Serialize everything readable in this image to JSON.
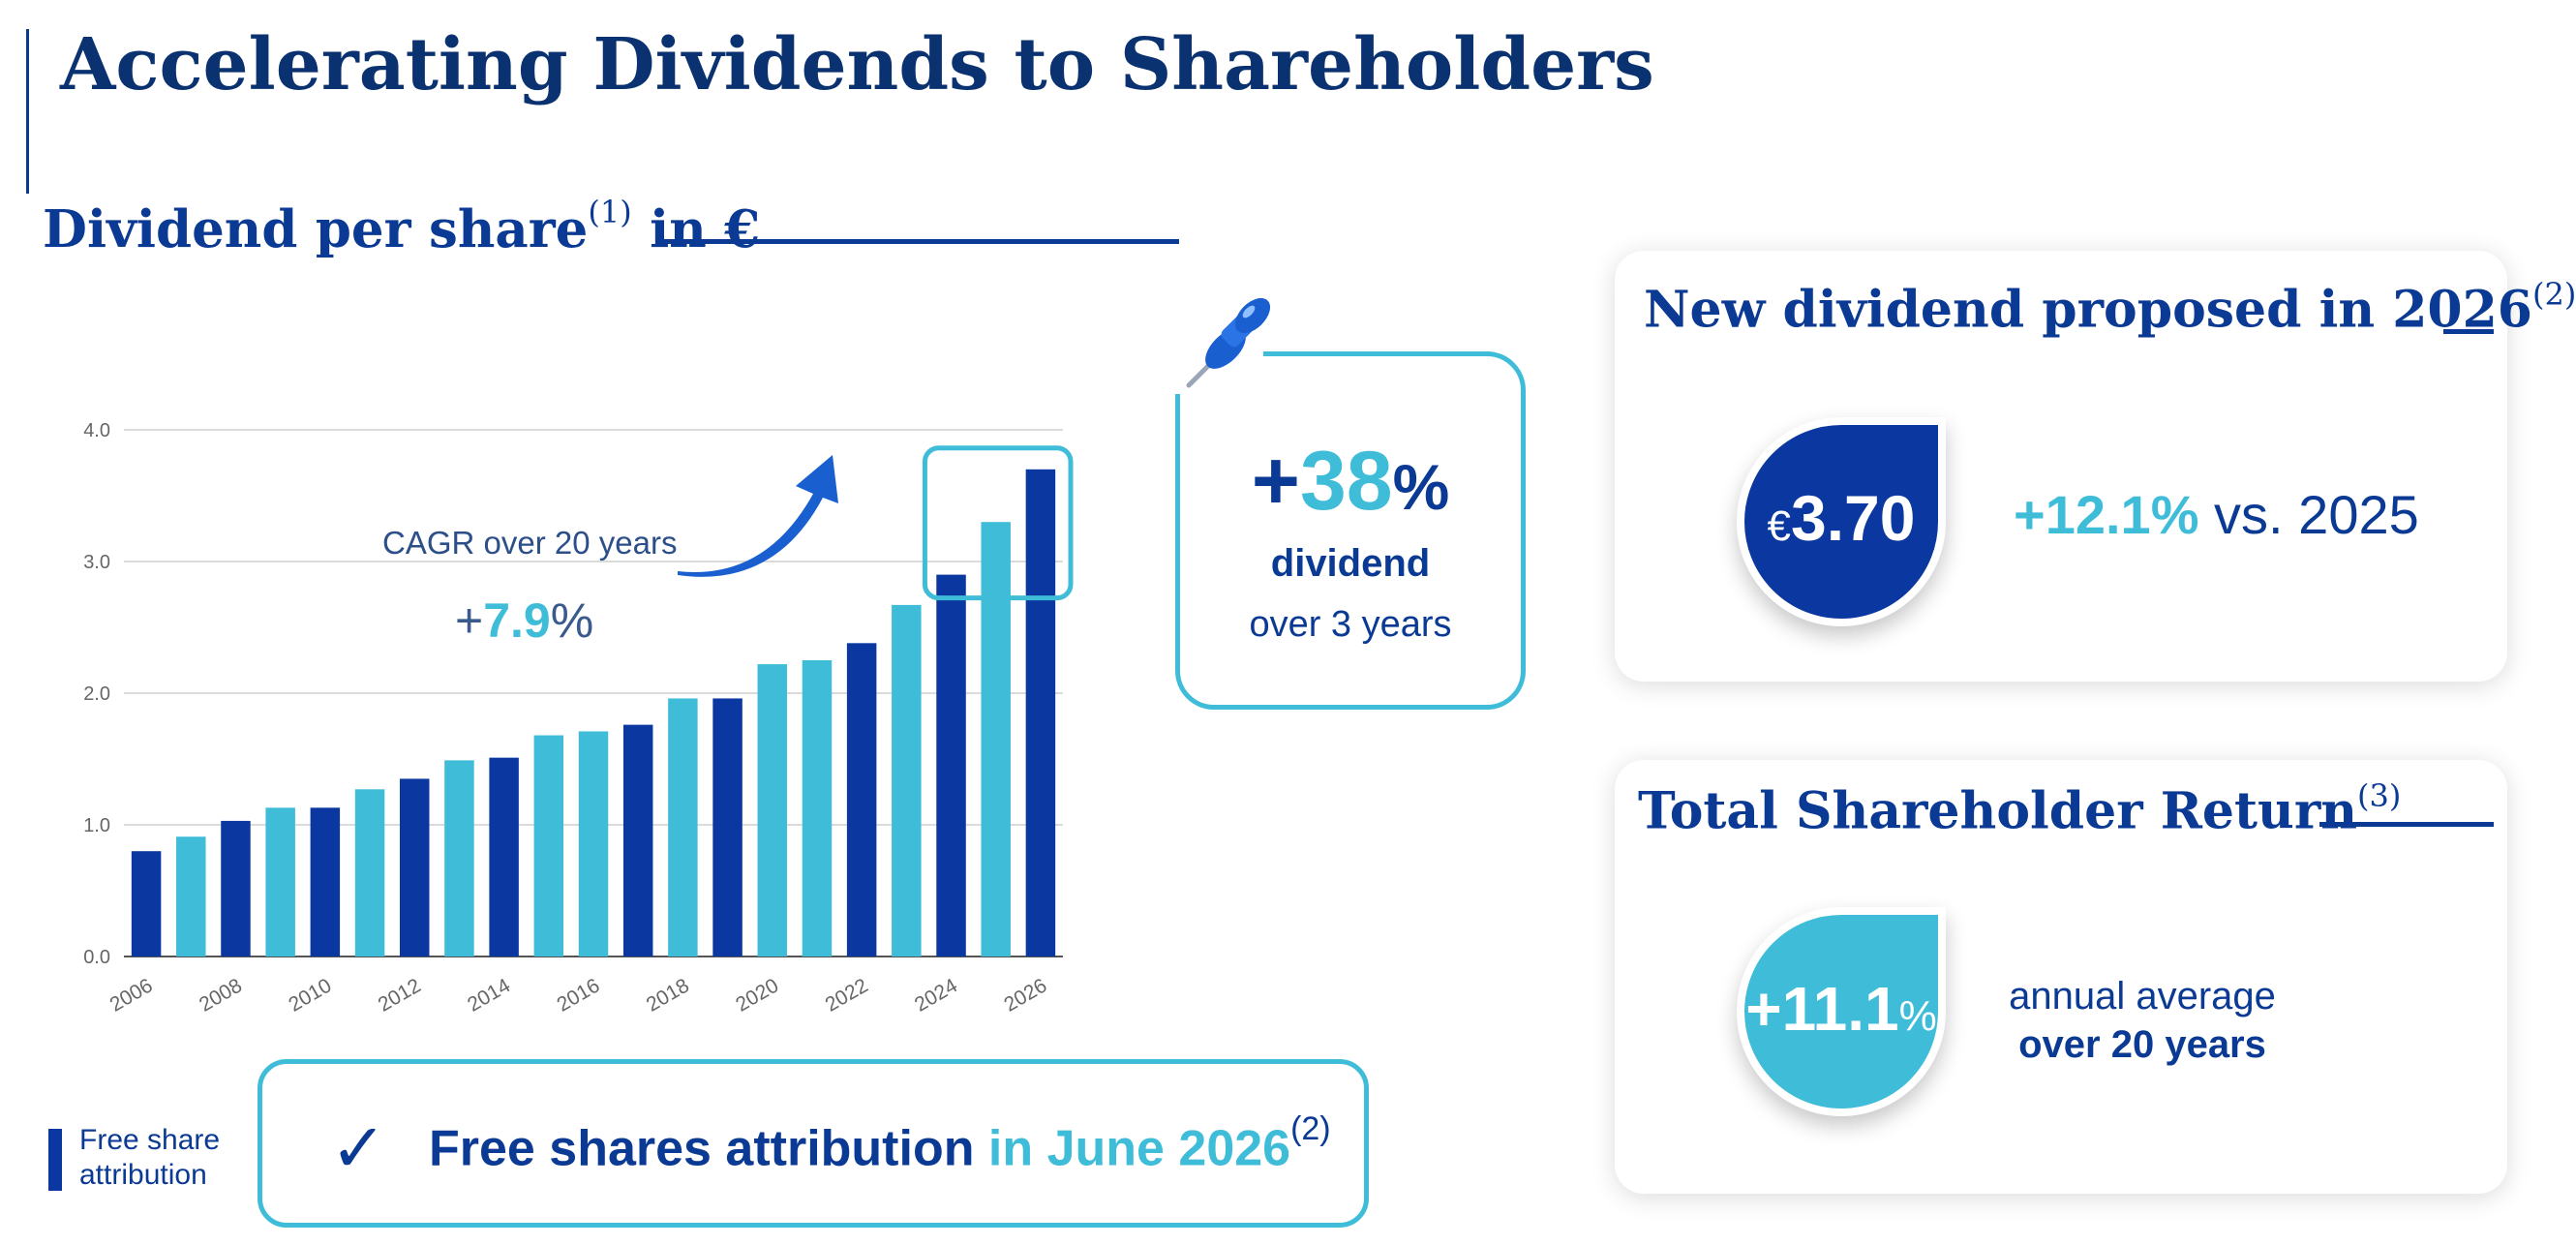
{
  "page": {
    "title": "Accelerating Dividends to Shareholders"
  },
  "chart_section": {
    "title": "Dividend per share",
    "title_note": "(1)",
    "title_unit": " in €"
  },
  "chart_data": {
    "type": "bar",
    "title": "Dividend per share in €",
    "xlabel": "",
    "ylabel": "",
    "ylim": [
      0,
      4.0
    ],
    "yticks": [
      0.0,
      1.0,
      2.0,
      3.0,
      4.0
    ],
    "ytick_labels": [
      "0.0",
      "1.0",
      "2.0",
      "3.0",
      "4.0"
    ],
    "grid": true,
    "categories": [
      "2006",
      "2007",
      "2008",
      "2009",
      "2010",
      "2011",
      "2012",
      "2013",
      "2014",
      "2015",
      "2016",
      "2017",
      "2018",
      "2019",
      "2020",
      "2021",
      "2022",
      "2023",
      "2024",
      "2025",
      "2026"
    ],
    "xtick_labels": [
      "2006",
      "2008",
      "2010",
      "2012",
      "2014",
      "2016",
      "2018",
      "2020",
      "2022",
      "2024",
      "2026"
    ],
    "values": [
      0.8,
      0.91,
      1.03,
      1.13,
      1.13,
      1.27,
      1.35,
      1.49,
      1.51,
      1.68,
      1.71,
      1.76,
      1.96,
      1.96,
      2.22,
      2.25,
      2.38,
      2.67,
      2.9,
      3.3,
      3.7
    ],
    "bar_colors": [
      "dark",
      "light",
      "dark",
      "light",
      "dark",
      "light",
      "dark",
      "light",
      "dark",
      "light",
      "light",
      "dark",
      "light",
      "dark",
      "light",
      "light",
      "dark",
      "light",
      "dark",
      "light",
      "dark"
    ],
    "color_dark": "#0a38a0",
    "color_light": "#3fbdd8",
    "highlight_categories": [
      "2024",
      "2025",
      "2026"
    ],
    "annotations": {
      "cagr_label": "CAGR over 20 years",
      "cagr_sign": "+",
      "cagr_value": "7.9",
      "cagr_unit": "%"
    }
  },
  "callout_38": {
    "sign": "+",
    "value": "38",
    "unit": "%",
    "line1": "dividend",
    "line2": "over 3 years"
  },
  "new_dividend": {
    "title": "New dividend proposed in 2026",
    "note": "(2)",
    "currency": "€",
    "amount": "3.70",
    "change": "+12.1%",
    "change_suffix": " vs. 2025"
  },
  "tsr": {
    "title": "Total Shareholder Return",
    "note": "(3)",
    "sign": "+",
    "value": "11.1",
    "unit": "%",
    "line1": "annual average",
    "line2": "over 20 years"
  },
  "legend": {
    "label": "Free share attribution"
  },
  "free_shares": {
    "check": "✓",
    "text": "Free shares attribution ",
    "highlight": "in June 2026",
    "note": "(2)"
  },
  "colors": {
    "navy": "#0b3a94",
    "dark_blue": "#0a38a0",
    "light_blue": "#3fbdd8",
    "title": "#0b3270"
  }
}
